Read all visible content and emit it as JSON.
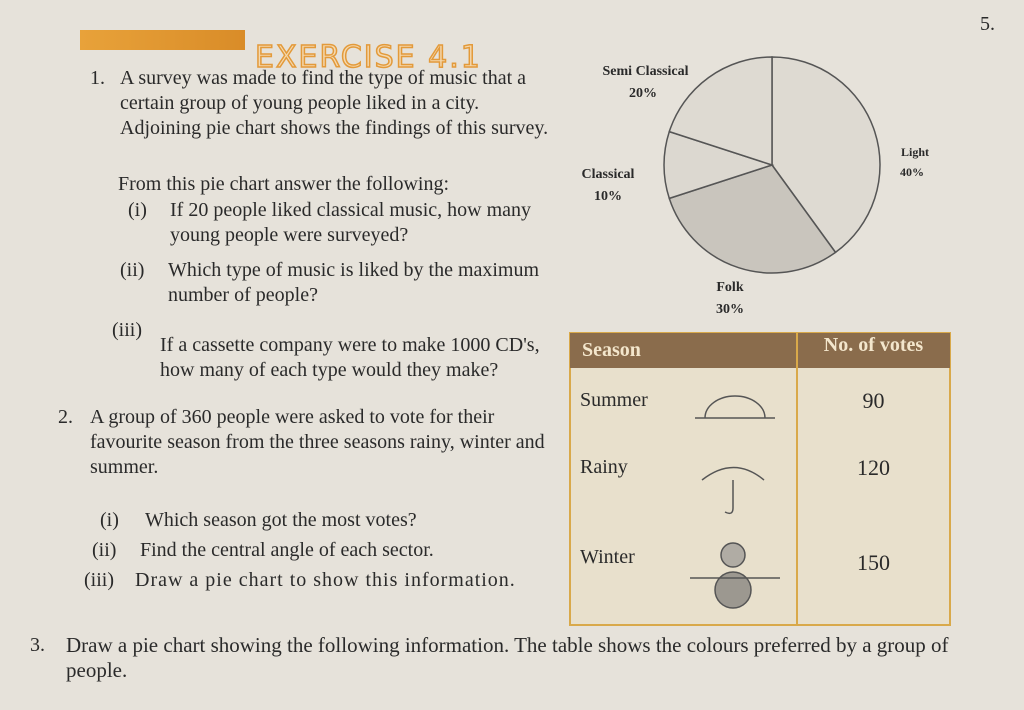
{
  "header": {
    "title": "EXERCISE 4.1",
    "corner": "5."
  },
  "questions": [
    {
      "number": "1.",
      "text": "A survey was made to find the type of music that a certain group of young people liked in a city. Adjoining pie chart shows the findings of this survey.",
      "lead": "From this pie chart answer the following:",
      "parts": [
        {
          "label": "(i)",
          "text": "If 20 people liked classical music, how many young people were surveyed?"
        },
        {
          "label": "(ii)",
          "text": "Which type of music is liked by the maximum number of people?"
        },
        {
          "label": "(iii)",
          "text": "If a cassette company were to make 1000 CD's, how many of each type would they make?"
        }
      ]
    },
    {
      "number": "2.",
      "text": "A group of 360 people were asked to vote for their favourite season from the three seasons rainy, winter and summer.",
      "parts": [
        {
          "label": "(i)",
          "text": "Which season got the most votes?"
        },
        {
          "label": "(ii)",
          "text": "Find the central angle of each sector."
        },
        {
          "label": "(iii)",
          "text": "Draw a pie chart to show this information."
        }
      ]
    },
    {
      "number": "3.",
      "text": "Draw a pie chart showing the following information. The table shows the colours preferred by a group of people."
    }
  ],
  "pie": {
    "type": "pie",
    "categories": [
      "Light",
      "Folk",
      "Classical",
      "Semi Classical"
    ],
    "values": [
      40,
      30,
      10,
      20
    ],
    "value_labels": [
      "40%",
      "30%",
      "10%",
      "20%"
    ],
    "colors": [
      "#dedad2",
      "#c9c5bd",
      "#dcd8d0",
      "#dedad2"
    ]
  },
  "table": {
    "header": [
      "Season",
      "No. of votes"
    ],
    "rows": [
      [
        "Summer",
        90
      ],
      [
        "Rainy",
        120
      ],
      [
        "Winter",
        150
      ]
    ]
  }
}
